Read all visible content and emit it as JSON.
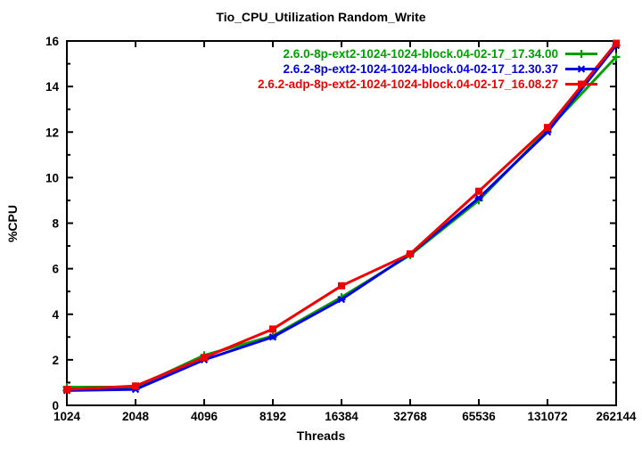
{
  "chart_data": {
    "type": "line",
    "title": "Tio_CPU_Utilization Random_Write",
    "xlabel": "Threads",
    "ylabel": "%CPU",
    "categories": [
      "1024",
      "2048",
      "4096",
      "8192",
      "16384",
      "32768",
      "65536",
      "131072",
      "262144"
    ],
    "ylim": [
      0,
      16
    ],
    "ytick_step": 2,
    "ytick_minor_step": 1,
    "grid": false,
    "legend_position": "top-right-inside",
    "series": [
      {
        "name": "2.6.0-8p-ext2-1024-1024-block.04-02-17_17.34.00",
        "color": "#00a000",
        "marker": "plus",
        "values": [
          0.8,
          0.8,
          2.2,
          3.05,
          4.75,
          6.6,
          9.0,
          12.1,
          15.3
        ]
      },
      {
        "name": "2.6.2-8p-ext2-1024-1024-block.04-02-17_12.30.37",
        "color": "#0000e6",
        "marker": "asterisk",
        "values": [
          0.65,
          0.7,
          2.0,
          3.0,
          4.65,
          6.65,
          9.1,
          12.0,
          15.8
        ]
      },
      {
        "name": "2.6.2-adp-8p-ext2-1024-1024-block.04-02-17_16.08.27",
        "color": "#f00000",
        "marker": "square-filled",
        "values": [
          0.7,
          0.85,
          2.1,
          3.35,
          5.25,
          6.65,
          9.4,
          12.2,
          15.9
        ]
      }
    ]
  }
}
